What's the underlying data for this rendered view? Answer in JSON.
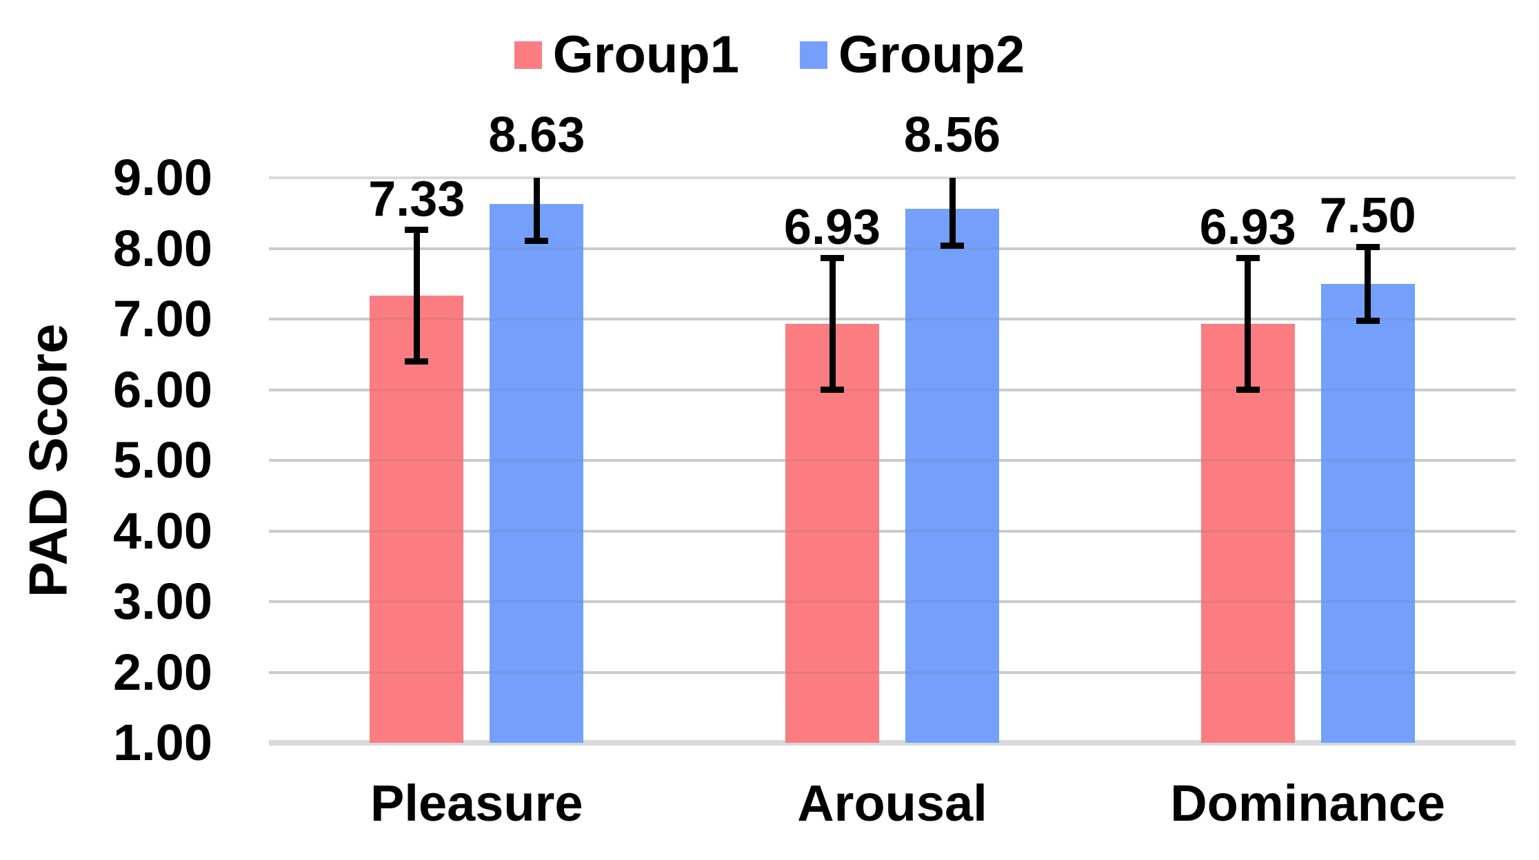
{
  "chart_data": {
    "type": "bar",
    "title": "",
    "categories": [
      "Pleasure",
      "Arousal",
      "Dominance"
    ],
    "series": [
      {
        "name": "Group1",
        "color": "#FC7D81",
        "values": [
          7.33,
          6.93,
          6.93
        ],
        "errors": [
          0.93,
          0.93,
          0.93
        ]
      },
      {
        "name": "Group2",
        "color": "#74A0FB",
        "values": [
          8.63,
          8.56,
          7.5
        ],
        "errors": [
          0.52,
          0.52,
          0.52
        ]
      }
    ],
    "data_labels": [
      [
        "7.33",
        "6.93",
        "6.93"
      ],
      [
        "8.63",
        "8.56",
        "7.50"
      ]
    ],
    "ylabel": "PAD Score",
    "ylim": [
      1,
      9
    ],
    "ytick_labels": [
      "9.00",
      "8.00",
      "7.00",
      "6.00",
      "5.00",
      "4.00",
      "3.00",
      "2.00",
      "1.00"
    ],
    "grid": true,
    "legend_position": "top",
    "gridline_color": "#D9D9D9",
    "error_bar_color": "#000000",
    "text_color": "#000000"
  }
}
